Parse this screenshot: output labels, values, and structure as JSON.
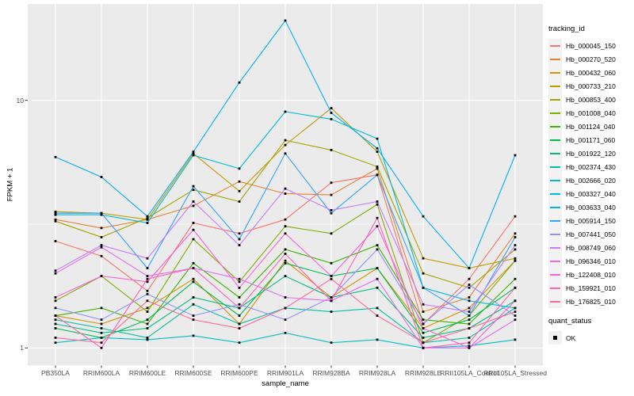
{
  "figure": {
    "x_axis_title": "sample_name",
    "y_axis_title": "FPKM + 1",
    "y_tick_labels": [
      "10",
      "1"
    ],
    "legend": {
      "tracking_title": "tracking_id",
      "quant_title": "quant_status",
      "quant_items": [
        {
          "label": "OK"
        }
      ]
    }
  },
  "chart_data": {
    "type": "line",
    "title": "",
    "xlabel": "sample_name",
    "ylabel": "FPKM + 1",
    "y_scale": "log10",
    "y_ticks": [
      1,
      10
    ],
    "ylim": [
      0.85,
      23.7
    ],
    "grid": "on",
    "legend_position": "right",
    "panel_background": "#EBEBEB",
    "grid_color": "#FFFFFF",
    "point_marker": {
      "shape": "square",
      "color": "#000000",
      "status_label": "OK"
    },
    "categories": [
      "PB350LA",
      "RRIM600LA",
      "RRIM600LE",
      "RRIM600SE",
      "RRIM600PE",
      "RRIM901LA",
      "RRIM928BA",
      "RRIM928LA",
      "RRIM928LE",
      "RRII105LA_Control",
      "RRII105LA_Stressed"
    ],
    "series": [
      {
        "name": "Hb_000045_150",
        "color": "#F8766D",
        "values": [
          2.7,
          2.35,
          1.7,
          3.2,
          2.9,
          3.3,
          4.65,
          5.0,
          1.25,
          1.9,
          3.4
        ]
      },
      {
        "name": "Hb_000270_520",
        "color": "#EA8331",
        "values": [
          3.3,
          3.05,
          3.3,
          3.75,
          4.7,
          4.2,
          4.15,
          5.3,
          1.4,
          1.6,
          2.9
        ]
      },
      {
        "name": "Hb_000432_060",
        "color": "#D89000",
        "values": [
          1.35,
          1.25,
          1.45,
          1.9,
          1.25,
          2.25,
          1.6,
          2.1,
          1.2,
          1.45,
          2.25
        ]
      },
      {
        "name": "Hb_000733_210",
        "color": "#C09B00",
        "values": [
          3.55,
          3.5,
          3.3,
          6.1,
          4.3,
          6.6,
          9.3,
          6.2,
          2.3,
          2.1,
          2.3
        ]
      },
      {
        "name": "Hb_000853_400",
        "color": "#A3A500",
        "values": [
          3.25,
          2.8,
          3.35,
          4.35,
          3.9,
          6.9,
          6.3,
          5.4,
          2.0,
          1.75,
          2.5
        ]
      },
      {
        "name": "Hb_001008_040",
        "color": "#7CAE00",
        "values": [
          1.55,
          1.95,
          1.4,
          2.75,
          1.85,
          3.1,
          2.9,
          3.8,
          1.05,
          1.35,
          2.25
        ]
      },
      {
        "name": "Hb_001124_040",
        "color": "#39B600",
        "values": [
          1.35,
          1.45,
          1.25,
          2.2,
          1.6,
          2.5,
          2.2,
          2.6,
          1.3,
          1.25,
          1.9
        ]
      },
      {
        "name": "Hb_001171_060",
        "color": "#00BB4E",
        "values": [
          1.2,
          1.1,
          1.3,
          1.85,
          1.35,
          2.2,
          1.95,
          2.1,
          1.15,
          1.3,
          1.75
        ]
      },
      {
        "name": "Hb_001922_120",
        "color": "#00BF7D",
        "values": [
          1.25,
          1.15,
          1.2,
          1.6,
          1.45,
          1.95,
          1.6,
          1.75,
          1.1,
          1.2,
          1.55
        ]
      },
      {
        "name": "Hb_002374_430",
        "color": "#00C1A3",
        "values": [
          1.3,
          1.2,
          1.1,
          1.5,
          1.25,
          1.45,
          1.4,
          1.45,
          1.05,
          1.1,
          1.45
        ]
      },
      {
        "name": "Hb_002666_020",
        "color": "#00BFC4",
        "values": [
          1.05,
          1.1,
          1.08,
          1.12,
          1.05,
          1.15,
          1.05,
          1.08,
          1.0,
          1.02,
          1.08
        ]
      },
      {
        "name": "Hb_003327_040",
        "color": "#00BBDA",
        "values": [
          3.45,
          3.45,
          3.2,
          6.0,
          5.3,
          9.0,
          8.4,
          7.0,
          1.75,
          1.55,
          1.45
        ]
      },
      {
        "name": "Hb_003633_040",
        "color": "#00B0F6",
        "values": [
          5.9,
          4.9,
          3.4,
          6.2,
          11.8,
          21.0,
          8.9,
          6.4,
          3.4,
          2.1,
          6.0
        ]
      },
      {
        "name": "Hb_005914_150",
        "color": "#35A2FF",
        "values": [
          3.5,
          3.5,
          2.1,
          4.5,
          2.75,
          6.1,
          3.5,
          5.0,
          1.75,
          1.35,
          2.8
        ]
      },
      {
        "name": "Hb_007441_050",
        "color": "#9590FF",
        "values": [
          1.45,
          1.3,
          1.65,
          1.35,
          1.5,
          1.3,
          1.6,
          2.5,
          1.25,
          1.8,
          1.35
        ]
      },
      {
        "name": "Hb_008749_060",
        "color": "#C77CFF",
        "values": [
          2.05,
          2.6,
          2.3,
          3.9,
          2.6,
          4.4,
          3.6,
          3.9,
          1.5,
          1.4,
          2.6
        ]
      },
      {
        "name": "Hb_096346_010",
        "color": "#E76BF3",
        "values": [
          2.0,
          2.55,
          1.95,
          2.1,
          1.9,
          1.6,
          1.55,
          1.9,
          1.0,
          1.0,
          1.3
        ]
      },
      {
        "name": "Hb_122408_010",
        "color": "#FA62DB",
        "values": [
          1.6,
          1.95,
          1.85,
          3.0,
          1.75,
          2.9,
          1.95,
          3.1,
          1.2,
          1.0,
          1.55
        ]
      },
      {
        "name": "Hb_159921_010",
        "color": "#FF62BC",
        "values": [
          1.35,
          1.0,
          1.9,
          2.1,
          1.45,
          2.4,
          1.55,
          3.35,
          1.0,
          1.05,
          1.75
        ]
      },
      {
        "name": "Hb_176825_010",
        "color": "#FF6A98",
        "values": [
          1.1,
          1.05,
          1.55,
          1.3,
          1.2,
          1.45,
          1.9,
          1.35,
          1.05,
          1.2,
          1.4
        ]
      }
    ]
  }
}
